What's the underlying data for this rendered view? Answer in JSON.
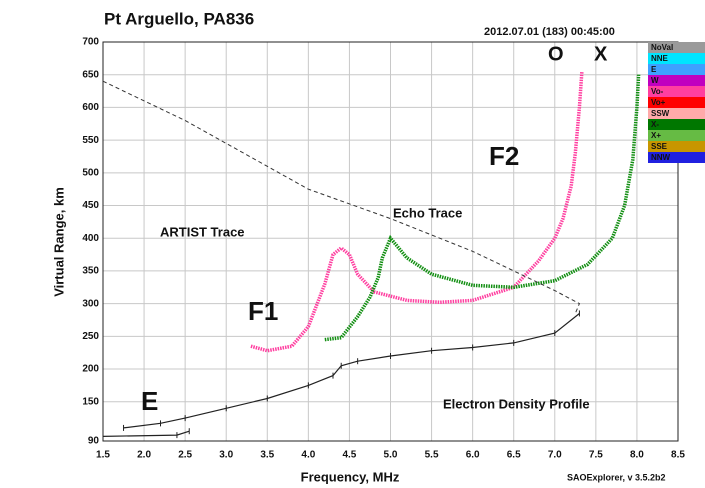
{
  "chart_data": {
    "type": "line",
    "title": "Pt Arguello, PA836",
    "subtitle": "2012.07.01 (183) 00:45:00",
    "x_label": "Frequency, MHz",
    "y_label": "Virtual Range, km",
    "footer": "SAOExplorer, v 3.5.2b2",
    "xlim": [
      1.5,
      8.5
    ],
    "ylim": [
      90,
      700
    ],
    "xticks": [
      1.5,
      {
        "value": 2,
        "label": "2.0"
      },
      2.5,
      {
        "value": 3,
        "label": "3.0"
      },
      3.5,
      {
        "value": 4,
        "label": "4.0"
      },
      4.5,
      {
        "value": 5,
        "label": "5.0"
      },
      5.5,
      {
        "value": 6,
        "label": "6.0"
      },
      6.5,
      {
        "value": 7,
        "label": "7.0"
      },
      7.5,
      {
        "value": 8,
        "label": "8.0"
      },
      8.5
    ],
    "yticks": [
      90,
      150,
      200,
      250,
      300,
      350,
      400,
      450,
      500,
      550,
      600,
      650,
      700
    ],
    "grid": true,
    "series": [
      {
        "color": "#ff3fa0",
        "style": "trace",
        "x": [
          3.3,
          3.5,
          3.8,
          4.0,
          4.2,
          4.3,
          4.4,
          4.5,
          4.6,
          4.8,
          5.2,
          5.6,
          6.0,
          6.5,
          6.8,
          7.0,
          7.1,
          7.2,
          7.25,
          7.3,
          7.33
        ],
        "values": [
          235,
          228,
          235,
          265,
          330,
          375,
          385,
          375,
          345,
          318,
          305,
          302,
          305,
          325,
          365,
          400,
          430,
          480,
          530,
          600,
          655
        ]
      },
      {
        "color": "#138f13",
        "style": "trace",
        "x": [
          4.2,
          4.4,
          4.6,
          4.75,
          4.85,
          4.9,
          5.0,
          5.2,
          5.5,
          6.0,
          6.5,
          7.0,
          7.4,
          7.7,
          7.85,
          7.95,
          8.0,
          8.02
        ],
        "values": [
          245,
          248,
          280,
          310,
          340,
          370,
          400,
          370,
          345,
          328,
          325,
          335,
          360,
          400,
          450,
          520,
          600,
          650
        ]
      },
      {
        "color": "#222222",
        "style": "solid",
        "x": [
          1.75,
          2.2,
          2.5,
          3.0,
          3.5,
          4.0,
          4.3,
          4.4,
          4.6,
          5.0,
          5.5,
          6.0,
          6.5,
          7.0,
          7.3
        ],
        "values": [
          110,
          117,
          125,
          140,
          155,
          175,
          190,
          205,
          212,
          220,
          228,
          233,
          240,
          255,
          285
        ]
      },
      {
        "color": "#222222",
        "style": "solid",
        "x": [
          1.5,
          2.4,
          2.55
        ],
        "values": [
          97,
          99,
          105
        ]
      },
      {
        "color": "#333333",
        "style": "dashed",
        "x": [
          1.5,
          2.5,
          3.5,
          4.0,
          5.0,
          6.0,
          6.5,
          7.0,
          7.3,
          7.25
        ],
        "values": [
          640,
          580,
          510,
          475,
          430,
          380,
          350,
          320,
          300,
          285
        ]
      }
    ],
    "legend": [
      {
        "label": "NoVal",
        "color": "#9a9a9a"
      },
      {
        "label": "NNE",
        "color": "#00e5ff"
      },
      {
        "label": "E",
        "color": "#3fa0ff"
      },
      {
        "label": "W",
        "color": "#c000c0"
      },
      {
        "label": "Vo-",
        "color": "#ff3fa0"
      },
      {
        "label": "Vo+",
        "color": "#ff0000"
      },
      {
        "label": "SSW",
        "color": "#ffaaaa"
      },
      {
        "label": "X-",
        "color": "#007700"
      },
      {
        "label": "X+",
        "color": "#66bb44"
      },
      {
        "label": "SSE",
        "color": "#c89600"
      },
      {
        "label": "NNW",
        "color": "#2020e0"
      }
    ],
    "annotations": [
      {
        "text": "ARTIST Trace"
      },
      {
        "text": "Echo Trace"
      },
      {
        "text": "Electron Density Profile"
      },
      {
        "text": "F1"
      },
      {
        "text": "F2"
      },
      {
        "text": "E"
      },
      {
        "text": "O",
        "color": "#ff3fa0"
      },
      {
        "text": "X",
        "color": "#138f13"
      }
    ]
  }
}
